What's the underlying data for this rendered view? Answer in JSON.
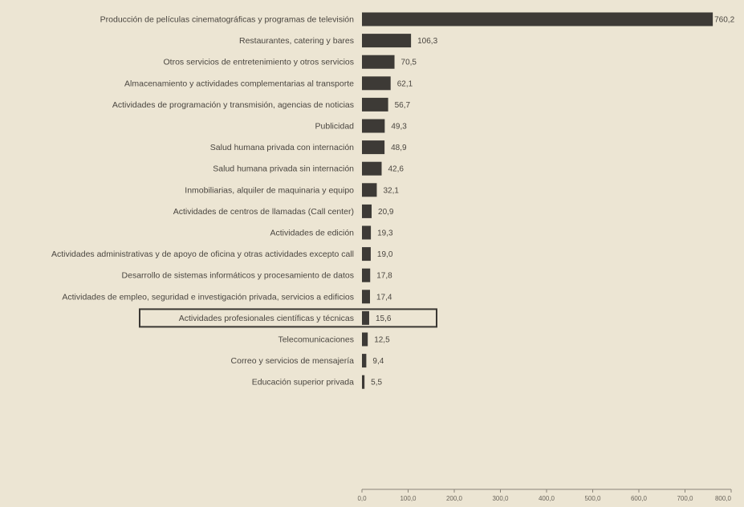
{
  "chart_data": {
    "type": "bar",
    "orientation": "horizontal",
    "categories": [
      "Producción de películas cinematográficas y programas de televisión",
      "Restaurantes, catering y bares",
      "Otros servicios de entretenimiento y otros servicios",
      "Almacenamiento y actividades complementarias al transporte",
      "Actividades de programación y transmisión, agencias de noticias",
      "Publicidad",
      "Salud humana privada con internación",
      "Salud humana privada sin internación",
      "Inmobiliarias, alquiler de maquinaria y equipo",
      "Actividades de centros de llamadas (Call center)",
      "Actividades de edición",
      "Actividades administrativas y de apoyo de oficina y otras actividades excepto call",
      "Desarrollo de sistemas informáticos y procesamiento de datos",
      "Actividades de empleo, seguridad e investigación privada, servicios a edificios",
      "Actividades profesionales científicas y técnicas",
      "Telecomunicaciones",
      "Correo y servicios de mensajería",
      "Educación superior privada"
    ],
    "values": [
      760.2,
      106.3,
      70.5,
      62.1,
      56.7,
      49.3,
      48.9,
      42.6,
      32.1,
      20.9,
      19.3,
      19.0,
      17.8,
      17.4,
      15.6,
      12.5,
      9.4,
      5.5
    ],
    "value_labels": [
      "760,2",
      "106,3",
      "70,5",
      "62,1",
      "56,7",
      "49,3",
      "48,9",
      "42,6",
      "32,1",
      "20,9",
      "19,3",
      "19,0",
      "17,8",
      "17,4",
      "15,6",
      "12,5",
      "9,4",
      "5,5"
    ],
    "highlighted_category": "Actividades profesionales científicas y técnicas",
    "xlim": [
      0,
      800
    ],
    "x_ticks": [
      0,
      100,
      200,
      300,
      400,
      500,
      600,
      700,
      800
    ],
    "x_tick_labels": [
      "0,0",
      "100,0",
      "200,0",
      "300,0",
      "400,0",
      "500,0",
      "600,0",
      "700,0",
      "800,0"
    ],
    "grid": false,
    "colors": {
      "bar": "#3d3a36",
      "background": "#ece5d3",
      "highlight_box": "#3a3733",
      "text": "#4a4640"
    }
  }
}
